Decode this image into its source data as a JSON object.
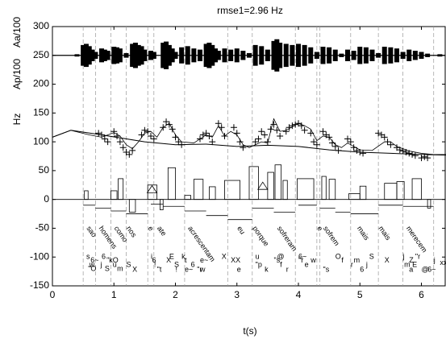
{
  "chart_data": {
    "type": "fujisaki",
    "title": "rmse1=2.96 Hz",
    "x_label": "t(s)",
    "y_labels": [
      "Hz",
      "Ap/100",
      "Aa/100"
    ],
    "xlim": [
      0,
      6.4
    ],
    "xticks": [
      0,
      1,
      2,
      3,
      4,
      5,
      6
    ],
    "ylim": [
      -150,
      300
    ],
    "yticks": [
      -150,
      -100,
      -50,
      0,
      50,
      100,
      150,
      200,
      250,
      300
    ],
    "waveform": {
      "baseline": 250,
      "x": [
        0.4,
        0.5,
        0.55,
        0.6,
        0.65,
        0.7,
        0.8,
        0.85,
        0.9,
        1.0,
        1.05,
        1.1,
        1.2,
        1.3,
        1.35,
        1.4,
        1.45,
        1.5,
        1.6,
        1.65,
        1.8,
        1.85,
        1.9,
        1.95,
        2.0,
        2.1,
        2.2,
        2.3,
        2.4,
        2.5,
        2.55,
        2.6,
        2.65,
        2.7,
        2.8,
        2.9,
        3.0,
        3.1,
        3.2,
        3.3,
        3.4,
        3.5,
        3.6,
        3.65,
        3.7,
        3.8,
        3.9,
        4.0,
        4.1,
        4.2,
        4.3,
        4.4,
        4.5,
        4.6,
        4.7,
        4.8,
        4.9,
        5.0,
        5.1,
        5.2,
        5.3,
        5.4,
        5.5,
        5.6,
        5.7,
        5.8,
        5.9,
        6.0,
        6.1,
        6.3
      ],
      "values": [
        2,
        18,
        20,
        16,
        10,
        6,
        12,
        10,
        8,
        15,
        14,
        12,
        4,
        20,
        22,
        18,
        16,
        10,
        8,
        6,
        22,
        24,
        18,
        12,
        6,
        14,
        16,
        12,
        10,
        20,
        22,
        18,
        12,
        8,
        12,
        10,
        12,
        8,
        4,
        18,
        16,
        10,
        25,
        28,
        22,
        20,
        18,
        20,
        18,
        14,
        6,
        15,
        14,
        10,
        3,
        10,
        8,
        15,
        14,
        10,
        4,
        15,
        14,
        12,
        6,
        10,
        8,
        6,
        3,
        2
      ]
    },
    "f0": {
      "x": [
        0.75,
        0.8,
        0.85,
        0.9,
        1.0,
        1.05,
        1.1,
        1.15,
        1.2,
        1.25,
        1.3,
        1.45,
        1.5,
        1.55,
        1.6,
        1.65,
        1.8,
        1.85,
        1.9,
        1.95,
        2.0,
        2.05,
        2.1,
        2.4,
        2.45,
        2.5,
        2.55,
        2.6,
        2.7,
        2.75,
        2.8,
        2.95,
        3.0,
        3.05,
        3.1,
        3.3,
        3.35,
        3.4,
        3.45,
        3.5,
        3.55,
        3.6,
        3.65,
        3.7,
        3.8,
        3.85,
        3.9,
        3.95,
        4.0,
        4.05,
        4.1,
        4.2,
        4.25,
        4.3,
        4.4,
        4.45,
        4.5,
        4.55,
        4.6,
        4.65,
        4.8,
        4.85,
        4.9,
        4.95,
        5.0,
        5.05,
        5.3,
        5.35,
        5.4,
        5.45,
        5.5,
        5.6,
        5.65,
        5.7,
        5.75,
        5.8,
        5.85,
        5.9,
        6.0,
        6.05,
        6.1
      ],
      "values": [
        115,
        112,
        105,
        100,
        118,
        110,
        100,
        90,
        82,
        78,
        85,
        112,
        120,
        118,
        110,
        105,
        125,
        135,
        130,
        122,
        108,
        100,
        95,
        105,
        112,
        115,
        110,
        100,
        132,
        125,
        110,
        125,
        115,
        100,
        90,
        100,
        105,
        118,
        112,
        100,
        122,
        130,
        120,
        110,
        118,
        125,
        128,
        130,
        132,
        128,
        120,
        115,
        100,
        95,
        118,
        112,
        108,
        98,
        92,
        85,
        105,
        100,
        90,
        85,
        82,
        80,
        115,
        112,
        108,
        100,
        95,
        90,
        86,
        84,
        82,
        80,
        78,
        76,
        72,
        74,
        72
      ]
    },
    "model": {
      "x": [
        0,
        0.3,
        0.6,
        0.8,
        1.0,
        1.1,
        1.2,
        1.3,
        1.4,
        1.5,
        1.6,
        1.7,
        1.8,
        1.9,
        2.0,
        2.1,
        2.3,
        2.5,
        2.6,
        2.7,
        2.8,
        2.9,
        3.0,
        3.1,
        3.2,
        3.4,
        3.5,
        3.6,
        3.7,
        3.8,
        4.0,
        4.1,
        4.2,
        4.3,
        4.4,
        4.5,
        4.6,
        4.7,
        4.8,
        4.9,
        5.0,
        5.2,
        5.4,
        5.5,
        5.6,
        5.8,
        6.0,
        6.2,
        6.4
      ],
      "values": [
        108,
        120,
        112,
        108,
        116,
        110,
        95,
        88,
        100,
        115,
        118,
        108,
        125,
        132,
        112,
        100,
        98,
        112,
        108,
        128,
        110,
        118,
        112,
        95,
        90,
        100,
        98,
        140,
        118,
        120,
        132,
        128,
        122,
        102,
        110,
        108,
        95,
        90,
        98,
        92,
        86,
        85,
        100,
        100,
        92,
        84,
        80,
        78,
        78
      ]
    },
    "phrase_component": {
      "x": [
        0,
        0.3,
        0.8,
        1.5,
        2.0,
        2.5,
        3.0,
        3.5,
        4.0,
        4.5,
        5.0,
        5.5,
        6.0,
        6.4
      ],
      "values": [
        108,
        120,
        112,
        100,
        95,
        96,
        92,
        94,
        92,
        86,
        82,
        80,
        78,
        77
      ]
    },
    "accents": [
      [
        0.52,
        0.58,
        15
      ],
      [
        0.95,
        1.05,
        15
      ],
      [
        1.07,
        1.15,
        36
      ],
      [
        1.25,
        1.35,
        -22
      ],
      [
        1.55,
        1.7,
        25
      ],
      [
        1.75,
        1.8,
        -18
      ],
      [
        1.88,
        2.0,
        55
      ],
      [
        2.15,
        2.25,
        7
      ],
      [
        2.3,
        2.45,
        35
      ],
      [
        2.55,
        2.65,
        22
      ],
      [
        2.8,
        3.05,
        33
      ],
      [
        3.2,
        3.35,
        57
      ],
      [
        3.5,
        3.6,
        47
      ],
      [
        3.62,
        3.72,
        60
      ],
      [
        3.75,
        3.82,
        33
      ],
      [
        3.98,
        4.25,
        36
      ],
      [
        4.38,
        4.45,
        40
      ],
      [
        4.5,
        4.6,
        35
      ],
      [
        4.82,
        5.0,
        10
      ],
      [
        5.0,
        5.1,
        23
      ],
      [
        5.4,
        5.6,
        28
      ],
      [
        5.6,
        5.72,
        31
      ],
      [
        5.85,
        6.0,
        36
      ],
      [
        6.1,
        6.15,
        -15
      ]
    ],
    "phrases": [
      [
        1.62,
        24
      ],
      [
        3.42,
        30
      ]
    ],
    "boundaries": [
      0.5,
      0.7,
      0.95,
      1.2,
      1.55,
      1.65,
      2.15,
      2.85,
      3.25,
      3.95,
      4.3,
      4.35,
      4.85,
      5.3,
      5.7,
      6.2
    ],
    "segments": [
      [
        0.5,
        0.7,
        -10
      ],
      [
        0.7,
        0.95,
        -15
      ],
      [
        0.95,
        1.2,
        -20
      ],
      [
        1.2,
        1.55,
        -25
      ],
      [
        1.6,
        1.8,
        -8
      ],
      [
        1.8,
        2.15,
        -12
      ],
      [
        2.15,
        2.5,
        -20
      ],
      [
        2.5,
        2.85,
        -28
      ],
      [
        2.85,
        3.25,
        -35
      ],
      [
        3.25,
        3.6,
        -15
      ],
      [
        3.6,
        3.95,
        -22
      ],
      [
        4.0,
        4.3,
        -10
      ],
      [
        4.35,
        4.6,
        -15
      ],
      [
        4.6,
        4.85,
        -22
      ],
      [
        4.85,
        5.3,
        -25
      ],
      [
        5.3,
        5.7,
        -10
      ],
      [
        5.7,
        6.2,
        -12
      ]
    ],
    "words": [
      [
        "sao",
        0.55
      ],
      [
        "homens",
        0.75
      ],
      [
        "como",
        1.0
      ],
      [
        "nos",
        1.2
      ],
      [
        "e",
        1.55
      ],
      [
        "ate",
        1.7
      ],
      [
        "acrescentam",
        2.2
      ],
      [
        "eu",
        3.0
      ],
      [
        "porque",
        3.25
      ],
      [
        "sofreram",
        3.65
      ],
      [
        "e",
        4.3
      ],
      [
        "sofrem",
        4.4
      ],
      [
        "mais",
        4.95
      ],
      [
        "mais",
        5.3
      ],
      [
        "merecem",
        5.75
      ]
    ],
    "phonemes": [
      [
        "s",
        0.55,
        -100
      ],
      [
        "6~",
        0.62,
        -106
      ],
      [
        "w",
        0.6,
        -114
      ],
      [
        "\"O",
        0.58,
        -121
      ],
      [
        "6",
        0.8,
        -100
      ],
      [
        "\"kO",
        0.88,
        -106
      ],
      [
        "j",
        0.78,
        -114
      ],
      [
        "S",
        0.85,
        -121
      ],
      [
        "u",
        0.98,
        -114
      ],
      [
        "m",
        1.05,
        -121
      ],
      [
        "S",
        1.2,
        -114
      ],
      [
        "X",
        1.3,
        -122
      ],
      [
        "i",
        1.6,
        -100
      ],
      [
        "6",
        1.62,
        -106
      ],
      [
        "!",
        1.65,
        -114
      ],
      [
        "\"t",
        1.7,
        -122
      ],
      [
        "E",
        1.9,
        -100
      ],
      [
        "X",
        1.85,
        -106
      ],
      [
        "S",
        1.98,
        -114
      ],
      [
        "!",
        2.0,
        -122
      ],
      [
        "k",
        2.1,
        -100
      ],
      [
        "t",
        2.15,
        -106
      ],
      [
        "e~",
        2.15,
        -122
      ],
      [
        "6",
        2.25,
        -114
      ],
      [
        "\"r",
        2.35,
        -122
      ],
      [
        "e~",
        2.4,
        -106
      ],
      [
        "w",
        2.4,
        -122
      ],
      [
        "X",
        2.75,
        -100
      ],
      [
        "XX",
        2.9,
        -106
      ],
      [
        "e",
        3.0,
        -122
      ],
      [
        "u",
        3.3,
        -100
      ],
      [
        "\"p",
        3.3,
        -114
      ],
      [
        "k",
        3.45,
        -122
      ],
      [
        "@",
        3.65,
        -100
      ],
      [
        "\"s",
        3.6,
        -106
      ],
      [
        "f",
        3.7,
        -114
      ],
      [
        "r",
        3.8,
        -122
      ],
      [
        "6~",
        4.0,
        -100
      ],
      [
        "\"r",
        4.0,
        -106
      ],
      [
        "e",
        4.1,
        -114
      ],
      [
        "w",
        4.2,
        -106
      ],
      [
        "\"s",
        4.4,
        -122
      ],
      [
        "O",
        4.6,
        -100
      ],
      [
        "f",
        4.7,
        -106
      ],
      [
        "r",
        4.85,
        -114
      ],
      [
        "m",
        4.9,
        -106
      ],
      [
        "6",
        5.0,
        -122
      ],
      [
        "j",
        5.1,
        -114
      ],
      [
        "S",
        5.15,
        -100
      ],
      [
        "X",
        5.4,
        -106
      ],
      [
        "j",
        5.7,
        -100
      ],
      [
        "Z",
        5.8,
        -106
      ],
      [
        "E",
        5.85,
        -114
      ],
      [
        "m",
        5.72,
        -114
      ],
      [
        "\"r",
        5.9,
        -100
      ],
      [
        "a",
        5.8,
        -122
      ],
      [
        "@",
        6.0,
        -122
      ],
      [
        "6~",
        6.1,
        -122
      ],
      [
        "j",
        6.2,
        -106
      ],
      [
        "xxx",
        6.3,
        -110
      ]
    ]
  }
}
